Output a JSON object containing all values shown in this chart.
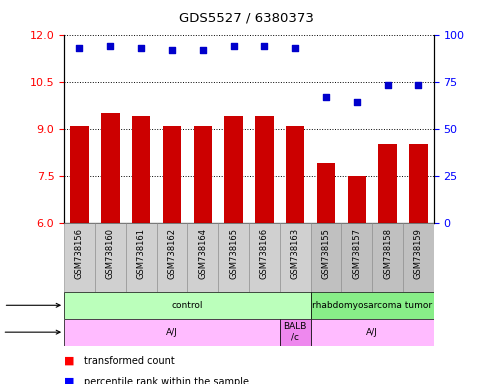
{
  "title": "GDS5527 / 6380373",
  "samples": [
    "GSM738156",
    "GSM738160",
    "GSM738161",
    "GSM738162",
    "GSM738164",
    "GSM738165",
    "GSM738166",
    "GSM738163",
    "GSM738155",
    "GSM738157",
    "GSM738158",
    "GSM738159"
  ],
  "bar_values": [
    9.1,
    9.5,
    9.4,
    9.1,
    9.1,
    9.4,
    9.4,
    9.1,
    7.9,
    7.5,
    8.5,
    8.5
  ],
  "dot_values": [
    93,
    94,
    93,
    92,
    92,
    94,
    94,
    93,
    67,
    64,
    73,
    73
  ],
  "bar_color": "#cc0000",
  "dot_color": "#0000cc",
  "ylim_left": [
    6,
    12
  ],
  "ylim_right": [
    0,
    100
  ],
  "yticks_left": [
    6,
    7.5,
    9,
    10.5,
    12
  ],
  "yticks_right": [
    0,
    25,
    50,
    75,
    100
  ],
  "tissue_groups": [
    {
      "label": "control",
      "start": 0,
      "end": 8,
      "color": "#bbffbb"
    },
    {
      "label": "rhabdomyosarcoma tumor",
      "start": 8,
      "end": 12,
      "color": "#88ee88"
    }
  ],
  "strain_groups": [
    {
      "label": "A/J",
      "start": 0,
      "end": 7,
      "color": "#ffbbff"
    },
    {
      "label": "BALB\n/c",
      "start": 7,
      "end": 8,
      "color": "#ee88ee"
    },
    {
      "label": "A/J",
      "start": 8,
      "end": 12,
      "color": "#ffbbff"
    }
  ],
  "sample_bg_colors": [
    "#cccccc",
    "#cccccc",
    "#cccccc",
    "#cccccc",
    "#cccccc",
    "#cccccc",
    "#cccccc",
    "#cccccc",
    "#bbbbbb",
    "#bbbbbb",
    "#bbbbbb",
    "#bbbbbb"
  ],
  "bar_color_left": "#cc0000",
  "bar_color_right": "#bb0000"
}
